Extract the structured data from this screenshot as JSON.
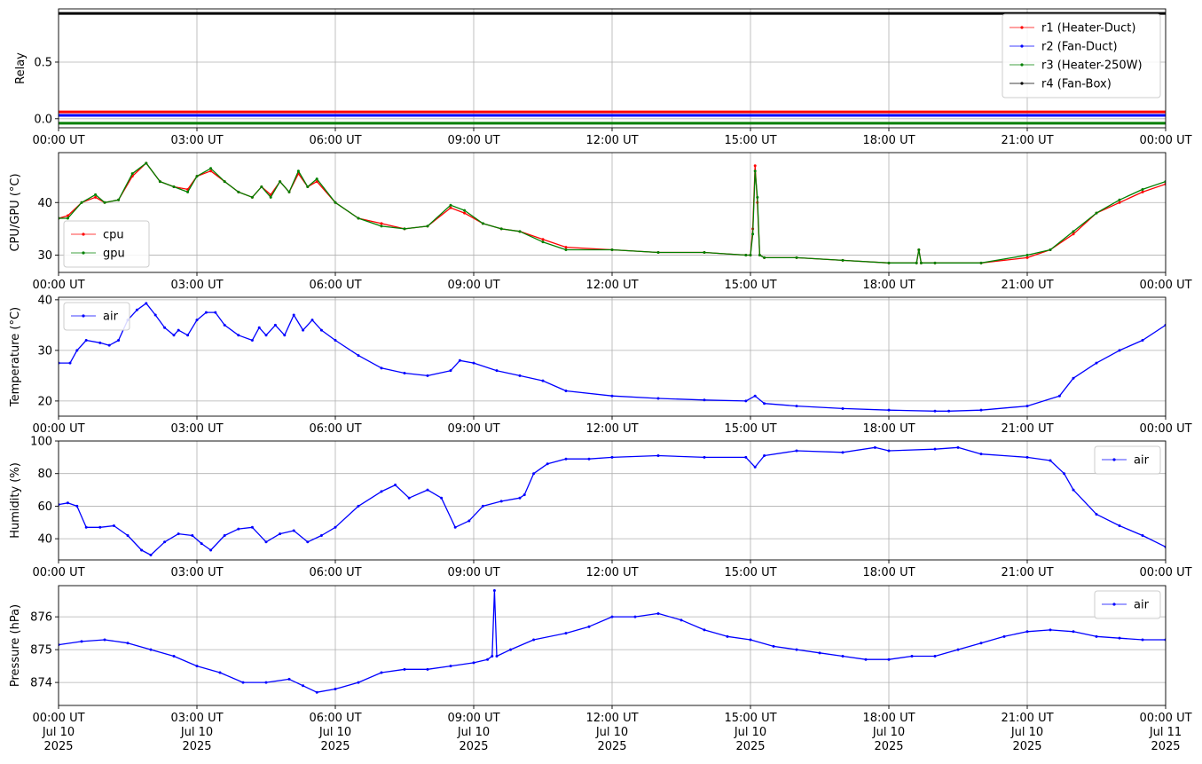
{
  "colors": {
    "red": "#ff0000",
    "blue": "#0000ff",
    "green": "#008000",
    "black": "#000000",
    "olive": "#7f4000"
  },
  "chart_data": [
    {
      "id": "relay",
      "type": "line",
      "ylabel": "Relay",
      "ylim": [
        -0.08,
        0.97
      ],
      "yticks": [
        0.0,
        0.5
      ],
      "ytick_labels": [
        "0.0",
        "0.5"
      ],
      "legend_position": "top-right",
      "x_tick_labels": [
        "00:00 UT",
        "03:00 UT",
        "06:00 UT",
        "09:00 UT",
        "12:00 UT",
        "15:00 UT",
        "18:00 UT",
        "21:00 UT",
        "00:00 UT"
      ],
      "grid": true,
      "series": [
        {
          "name": "r1 (Heater-Duct)",
          "color": "#ff0000",
          "x": [
            0,
            24
          ],
          "y": [
            0.06,
            0.06
          ]
        },
        {
          "name": "r2 (Fan-Duct)",
          "color": "#0000ff",
          "x": [
            0,
            24
          ],
          "y": [
            0.03,
            0.03
          ]
        },
        {
          "name": "r3 (Heater-250W)",
          "color": "#008000",
          "x": [
            0,
            24
          ],
          "y": [
            -0.04,
            -0.04
          ]
        },
        {
          "name": "r4 (Fan-Box)",
          "color": "#000000",
          "x": [
            0,
            24
          ],
          "y": [
            0.93,
            0.93
          ]
        }
      ]
    },
    {
      "id": "cpu-gpu",
      "type": "line",
      "ylabel": "CPU/GPU (°C)",
      "ylim": [
        26.7,
        49.5
      ],
      "yticks": [
        30,
        40
      ],
      "ytick_labels": [
        "30",
        "40"
      ],
      "legend_position": "bottom-left",
      "x_tick_labels": [
        "00:00 UT",
        "03:00 UT",
        "06:00 UT",
        "09:00 UT",
        "12:00 UT",
        "15:00 UT",
        "18:00 UT",
        "21:00 UT",
        "00:00 UT"
      ],
      "grid": true,
      "series": [
        {
          "name": "cpu",
          "color": "#ff0000",
          "x": [
            0,
            0.2,
            0.5,
            0.8,
            1.0,
            1.3,
            1.6,
            1.9,
            2.2,
            2.5,
            2.8,
            3.0,
            3.3,
            3.6,
            3.9,
            4.2,
            4.4,
            4.6,
            4.8,
            5.0,
            5.2,
            5.4,
            5.6,
            6.0,
            6.5,
            7.0,
            7.5,
            8.0,
            8.5,
            8.8,
            9.2,
            9.6,
            10.0,
            10.5,
            11.0,
            12.0,
            13.0,
            14.0,
            14.9,
            15.0,
            15.05,
            15.1,
            15.15,
            15.2,
            15.3,
            16.0,
            17.0,
            18.0,
            18.6,
            18.65,
            18.7,
            19.0,
            20.0,
            21.0,
            21.5,
            22.0,
            22.5,
            23.0,
            23.5,
            24.0
          ],
          "y": [
            37,
            37.5,
            40,
            41,
            40,
            40.5,
            45,
            47.5,
            44,
            43,
            42.5,
            45,
            46,
            44,
            42,
            41,
            43,
            41.5,
            44,
            42,
            45.5,
            43,
            44,
            40,
            37,
            36,
            35,
            35.5,
            39,
            38,
            36,
            35,
            34.5,
            33,
            31.5,
            31,
            30.5,
            30.5,
            30,
            30,
            35,
            47,
            40,
            30,
            29.5,
            29.5,
            29,
            28.5,
            28.5,
            31,
            28.5,
            28.5,
            28.5,
            29.5,
            31,
            34,
            38,
            40,
            42,
            43.5
          ]
        },
        {
          "name": "gpu",
          "color": "#008000",
          "x": [
            0,
            0.2,
            0.5,
            0.8,
            1.0,
            1.3,
            1.6,
            1.9,
            2.2,
            2.5,
            2.8,
            3.0,
            3.3,
            3.6,
            3.9,
            4.2,
            4.4,
            4.6,
            4.8,
            5.0,
            5.2,
            5.4,
            5.6,
            6.0,
            6.5,
            7.0,
            7.5,
            8.0,
            8.5,
            8.8,
            9.2,
            9.6,
            10.0,
            10.5,
            11.0,
            12.0,
            13.0,
            14.0,
            14.9,
            15.0,
            15.05,
            15.1,
            15.15,
            15.2,
            15.3,
            16.0,
            17.0,
            18.0,
            18.6,
            18.65,
            18.7,
            19.0,
            20.0,
            21.0,
            21.5,
            22.0,
            22.5,
            23.0,
            23.5,
            24.0
          ],
          "y": [
            37,
            37,
            40,
            41.5,
            40,
            40.5,
            45.5,
            47.5,
            44,
            43,
            42,
            45,
            46.5,
            44,
            42,
            41,
            43,
            41,
            44,
            42,
            46,
            43,
            44.5,
            40,
            37,
            35.5,
            35,
            35.5,
            39.5,
            38.5,
            36,
            35,
            34.5,
            32.5,
            31,
            31,
            30.5,
            30.5,
            30,
            30,
            34,
            46,
            41,
            30,
            29.5,
            29.5,
            29,
            28.5,
            28.5,
            31,
            28.5,
            28.5,
            28.5,
            30,
            31,
            34.5,
            38,
            40.5,
            42.5,
            44
          ]
        }
      ]
    },
    {
      "id": "temperature",
      "type": "line",
      "ylabel": "Temperature (°C)",
      "ylim": [
        17,
        40.5
      ],
      "yticks": [
        20,
        30,
        40
      ],
      "ytick_labels": [
        "20",
        "30",
        "40"
      ],
      "legend_position": "top-left",
      "x_tick_labels": [
        "00:00 UT",
        "03:00 UT",
        "06:00 UT",
        "09:00 UT",
        "12:00 UT",
        "15:00 UT",
        "18:00 UT",
        "21:00 UT",
        "00:00 UT"
      ],
      "grid": true,
      "series": [
        {
          "name": "air",
          "color": "#0000ff",
          "x": [
            0,
            0.25,
            0.4,
            0.6,
            0.9,
            1.1,
            1.3,
            1.5,
            1.7,
            1.9,
            2.1,
            2.3,
            2.5,
            2.6,
            2.8,
            3.0,
            3.2,
            3.4,
            3.6,
            3.9,
            4.2,
            4.35,
            4.5,
            4.7,
            4.9,
            5.1,
            5.3,
            5.5,
            5.7,
            6.0,
            6.5,
            7.0,
            7.5,
            8.0,
            8.5,
            8.7,
            9.0,
            9.5,
            10.0,
            10.5,
            11.0,
            12.0,
            13.0,
            14.0,
            14.9,
            15.1,
            15.3,
            16.0,
            17.0,
            18.0,
            19.0,
            19.3,
            20.0,
            21.0,
            21.7,
            22.0,
            22.5,
            23.0,
            23.5,
            24.0
          ],
          "y": [
            27.5,
            27.5,
            30,
            32,
            31.5,
            31,
            32,
            36,
            38,
            39.3,
            37,
            34.5,
            33,
            34,
            33,
            36,
            37.5,
            37.5,
            35,
            33,
            32,
            34.5,
            33,
            35,
            33,
            37,
            34,
            36,
            34,
            32,
            29,
            26.5,
            25.5,
            25,
            26,
            28,
            27.5,
            26,
            25,
            24,
            22,
            21,
            20.5,
            20.2,
            20,
            21,
            19.5,
            19,
            18.5,
            18.2,
            18,
            18,
            18.2,
            19,
            21,
            24.5,
            27.5,
            30,
            32,
            35
          ]
        }
      ]
    },
    {
      "id": "humidity",
      "type": "line",
      "ylabel": "Humidity (%)",
      "ylim": [
        27,
        100
      ],
      "yticks": [
        40,
        60,
        80,
        100
      ],
      "ytick_labels": [
        "40",
        "60",
        "80",
        "100"
      ],
      "legend_position": "top-right",
      "x_tick_labels": [
        "00:00 UT",
        "03:00 UT",
        "06:00 UT",
        "09:00 UT",
        "12:00 UT",
        "15:00 UT",
        "18:00 UT",
        "21:00 UT",
        "00:00 UT"
      ],
      "grid": true,
      "series": [
        {
          "name": "air",
          "color": "#0000ff",
          "x": [
            0,
            0.2,
            0.4,
            0.6,
            0.9,
            1.2,
            1.5,
            1.8,
            2.0,
            2.3,
            2.6,
            2.9,
            3.1,
            3.3,
            3.6,
            3.9,
            4.2,
            4.5,
            4.8,
            5.1,
            5.4,
            5.7,
            6.0,
            6.5,
            7.0,
            7.3,
            7.6,
            8.0,
            8.3,
            8.6,
            8.9,
            9.2,
            9.6,
            10.0,
            10.1,
            10.3,
            10.6,
            11.0,
            11.5,
            12.0,
            13.0,
            14.0,
            14.9,
            15.1,
            15.3,
            16.0,
            17.0,
            17.7,
            18.0,
            19.0,
            19.5,
            20.0,
            21.0,
            21.5,
            21.8,
            22.0,
            22.5,
            23.0,
            23.5,
            24.0
          ],
          "y": [
            61,
            62,
            60,
            47,
            47,
            48,
            42,
            33,
            30,
            38,
            43,
            42,
            37,
            33,
            42,
            46,
            47,
            38,
            43,
            45,
            38,
            42,
            47,
            60,
            69,
            73,
            65,
            70,
            65,
            47,
            51,
            60,
            63,
            65,
            67,
            80,
            86,
            89,
            89,
            90,
            91,
            90,
            90,
            84,
            91,
            94,
            93,
            96,
            94,
            95,
            96,
            92,
            90,
            88,
            80,
            70,
            55,
            48,
            42,
            35
          ]
        }
      ]
    },
    {
      "id": "pressure",
      "type": "line",
      "ylabel": "Pressure (hPa)",
      "ylim": [
        873.3,
        876.95
      ],
      "yticks": [
        874,
        875,
        876
      ],
      "ytick_labels": [
        "874",
        "875",
        "876"
      ],
      "legend_position": "top-right",
      "x_tick_labels": [
        "00:00 UT\nJul 10\n2025",
        "03:00 UT\nJul 10\n2025",
        "06:00 UT\nJul 10\n2025",
        "09:00 UT\nJul 10\n2025",
        "12:00 UT\nJul 10\n2025",
        "15:00 UT\nJul 10\n2025",
        "18:00 UT\nJul 10\n2025",
        "21:00 UT\nJul 10\n2025",
        "00:00 UT\nJul 11\n2025"
      ],
      "grid": true,
      "series": [
        {
          "name": "air",
          "color": "#0000ff",
          "x": [
            0,
            0.5,
            1.0,
            1.5,
            2.0,
            2.5,
            3.0,
            3.5,
            4.0,
            4.5,
            5.0,
            5.3,
            5.6,
            6.0,
            6.5,
            7.0,
            7.5,
            8.0,
            8.5,
            9.0,
            9.3,
            9.4,
            9.45,
            9.5,
            9.8,
            10.3,
            11.0,
            11.5,
            12.0,
            12.5,
            13.0,
            13.5,
            14.0,
            14.5,
            15.0,
            15.5,
            16.0,
            16.5,
            17.0,
            17.5,
            18.0,
            18.5,
            19.0,
            19.5,
            20.0,
            20.5,
            21.0,
            21.5,
            22.0,
            22.5,
            23.0,
            23.5,
            24.0
          ],
          "y": [
            875.15,
            875.25,
            875.3,
            875.2,
            875.0,
            874.8,
            874.5,
            874.3,
            874.0,
            874.0,
            874.1,
            873.9,
            873.7,
            873.8,
            874.0,
            874.3,
            874.4,
            874.4,
            874.5,
            874.6,
            874.7,
            874.8,
            876.8,
            874.8,
            875.0,
            875.3,
            875.5,
            875.7,
            876.0,
            876.0,
            876.1,
            875.9,
            875.6,
            875.4,
            875.3,
            875.1,
            875.0,
            874.9,
            874.8,
            874.7,
            874.7,
            874.8,
            874.8,
            875.0,
            875.2,
            875.4,
            875.55,
            875.6,
            875.55,
            875.4,
            875.35,
            875.3,
            875.3
          ]
        }
      ]
    }
  ]
}
